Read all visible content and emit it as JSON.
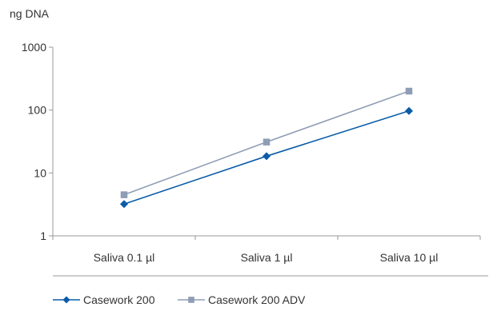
{
  "chart_data": {
    "type": "line",
    "title": "",
    "ylabel": "ng DNA",
    "xlabel": "",
    "yscale": "log",
    "ylim": [
      1,
      1000
    ],
    "yticks": [
      "1",
      "10",
      "100",
      "1000"
    ],
    "categories": [
      "Saliva 0.1 µl",
      "Saliva 1 µl",
      "Saliva 10 µl"
    ],
    "series": [
      {
        "name": "Casework 200",
        "marker": "diamond",
        "color": "#0a5ca8",
        "values": [
          3.2,
          18.5,
          97
        ]
      },
      {
        "name": "Casework 200 ADV",
        "marker": "square",
        "color": "#8e9db5",
        "values": [
          4.5,
          31,
          200
        ]
      }
    ],
    "grid": false,
    "legend": "bottom-left"
  }
}
